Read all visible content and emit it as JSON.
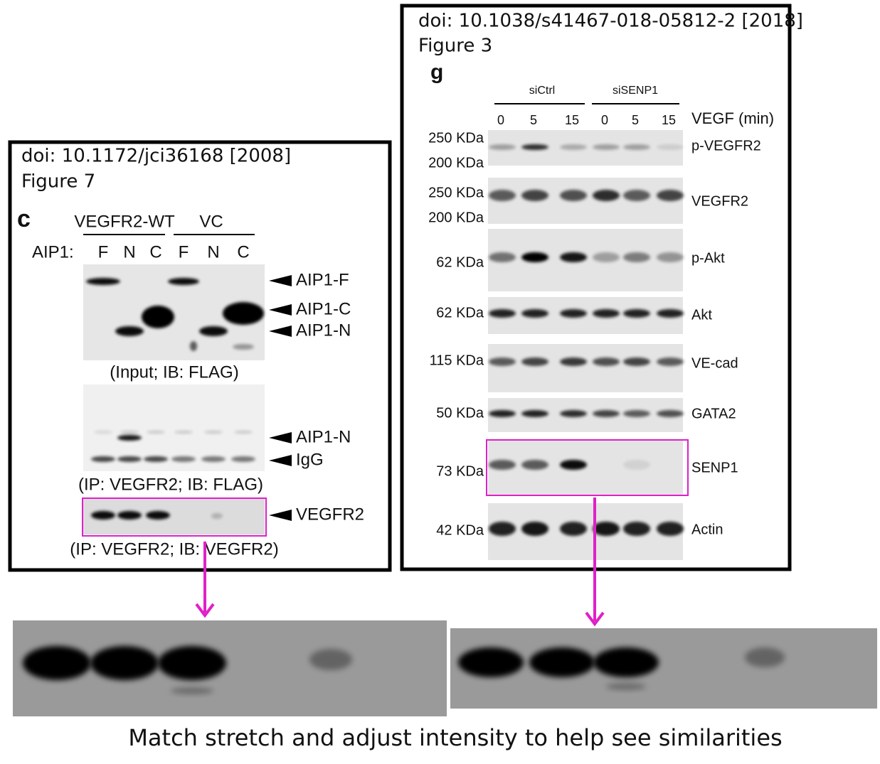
{
  "left_figure": {
    "doi": "doi: 10.1172/jci36168 [2008]",
    "figure": "Figure 7",
    "panel": "c",
    "groups": [
      "VEGFR2-WT",
      "VC"
    ],
    "lane_prefix": "AIP1:",
    "lanes": [
      "F",
      "N",
      "C",
      "F",
      "N",
      "C"
    ],
    "blots": [
      {
        "labels": [
          "AIP1-F",
          "AIP1-C",
          "AIP1-N"
        ],
        "caption": "(Input; IB: FLAG)"
      },
      {
        "labels": [
          "AIP1-N",
          "IgG"
        ],
        "caption": "(IP: VEGFR2; IB: FLAG)"
      },
      {
        "labels": [
          "VEGFR2"
        ],
        "caption": "(IP: VEGFR2; IB: VEGFR2)"
      }
    ]
  },
  "right_figure": {
    "doi": "doi: 10.1038/s41467-018-05812-2 [2018]",
    "figure": "Figure 3",
    "panel": "g",
    "groups": [
      "siCtrl",
      "siSENP1"
    ],
    "lanes": [
      "0",
      "5",
      "15",
      "0",
      "5",
      "15"
    ],
    "time_label": "VEGF (min)",
    "rows": [
      {
        "weights": [
          "250 KDa",
          "200 KDa"
        ],
        "label": "p-VEGFR2"
      },
      {
        "weights": [
          "250 KDa",
          "200 KDa"
        ],
        "label": "VEGFR2"
      },
      {
        "weights": [
          "62 KDa"
        ],
        "label": "p-Akt"
      },
      {
        "weights": [
          "62 KDa"
        ],
        "label": "Akt"
      },
      {
        "weights": [
          "115 KDa"
        ],
        "label": "VE-cad"
      },
      {
        "weights": [
          "50 KDa"
        ],
        "label": "GATA2"
      },
      {
        "weights": [
          "73 KDa"
        ],
        "label": "SENP1"
      },
      {
        "weights": [
          "42 KDa"
        ],
        "label": "Actin"
      }
    ]
  },
  "caption": "Match stretch and adjust intensity to help see similarities"
}
